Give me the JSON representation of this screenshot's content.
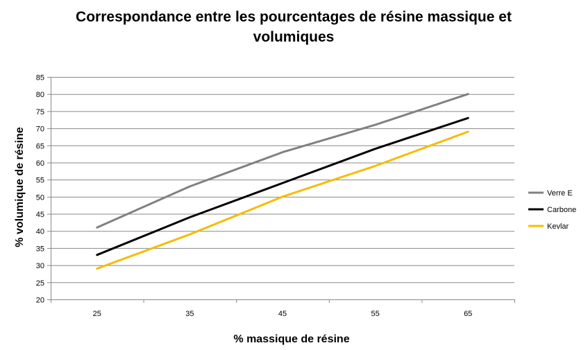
{
  "chart_data": {
    "type": "line",
    "title": "Correspondance entre les pourcentages de résine massique et volumiques",
    "title_lines": [
      "Correspondance entre les pourcentages de résine massique et",
      "volumiques"
    ],
    "xlabel": "% massique de résine",
    "ylabel": "% volumique de résine",
    "categories": [
      "25",
      "35",
      "45",
      "55",
      "65"
    ],
    "x": [
      25,
      35,
      45,
      55,
      65
    ],
    "ylim": [
      20,
      85
    ],
    "yticks": [
      20,
      25,
      30,
      35,
      40,
      45,
      50,
      55,
      60,
      65,
      70,
      75,
      80,
      85
    ],
    "grid": "horizontal",
    "legend_position": "right",
    "series": [
      {
        "name": "Verre E",
        "color": "#808080",
        "values": [
          41,
          53,
          63,
          71,
          80
        ]
      },
      {
        "name": "Carbone",
        "color": "#000000",
        "values": [
          33,
          44,
          54,
          64,
          73
        ]
      },
      {
        "name": "Kevlar",
        "color": "#f5bd00",
        "values": [
          29,
          39,
          50,
          59,
          69
        ]
      }
    ]
  }
}
